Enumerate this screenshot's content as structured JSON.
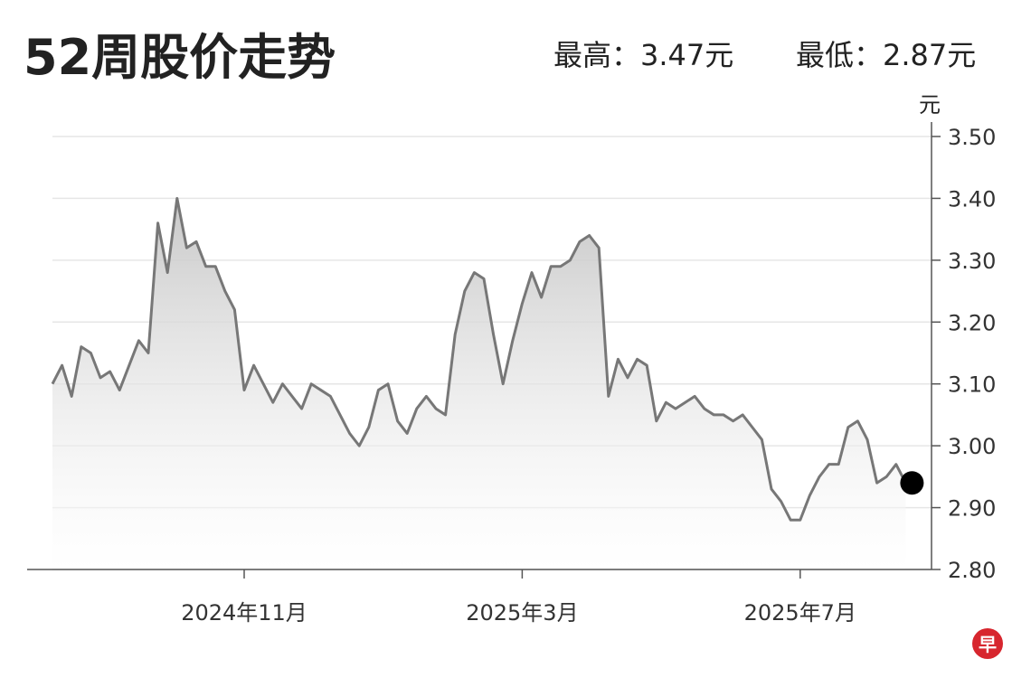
{
  "chart_data": {
    "type": "line",
    "title": "52周股价走势",
    "high_label": "最高：3.47元",
    "low_label": "最低：2.87元",
    "y_unit": "元",
    "logo": "早",
    "categories": [
      null,
      null,
      null,
      null,
      null,
      null,
      null,
      null,
      null,
      null,
      null,
      null,
      null,
      null,
      null,
      null,
      null,
      null,
      null,
      null,
      "2024年11月",
      null,
      null,
      null,
      null,
      null,
      null,
      null,
      null,
      null,
      null,
      null,
      null,
      null,
      null,
      null,
      null,
      null,
      null,
      null,
      null,
      null,
      null,
      null,
      null,
      null,
      null,
      null,
      null,
      "2025年3月",
      null,
      null,
      null,
      null,
      null,
      null,
      null,
      null,
      null,
      null,
      null,
      null,
      null,
      null,
      null,
      null,
      null,
      null,
      null,
      null,
      null,
      null,
      null,
      null,
      null,
      null,
      null,
      null,
      "2025年7月",
      null,
      null,
      null,
      null,
      null,
      null,
      null,
      null,
      null,
      null,
      null
    ],
    "series": [
      {
        "name": null,
        "color": "#777777",
        "values": [
          3.1,
          3.13,
          3.08,
          3.16,
          3.15,
          3.11,
          3.12,
          3.09,
          3.13,
          3.17,
          3.15,
          3.36,
          3.28,
          3.4,
          3.32,
          3.33,
          3.29,
          3.29,
          3.25,
          3.22,
          3.09,
          3.13,
          3.1,
          3.07,
          3.1,
          3.08,
          3.06,
          3.1,
          3.09,
          3.08,
          3.05,
          3.02,
          3.0,
          3.03,
          3.09,
          3.1,
          3.04,
          3.02,
          3.06,
          3.08,
          3.06,
          3.05,
          3.18,
          3.25,
          3.28,
          3.27,
          3.18,
          3.1,
          3.17,
          3.23,
          3.28,
          3.24,
          3.29,
          3.29,
          3.3,
          3.33,
          3.34,
          3.32,
          3.08,
          3.14,
          3.11,
          3.14,
          3.13,
          3.04,
          3.07,
          3.06,
          3.07,
          3.08,
          3.06,
          3.05,
          3.05,
          3.04,
          3.05,
          3.03,
          3.01,
          2.93,
          2.91,
          2.88,
          2.88,
          2.92,
          2.95,
          2.97,
          2.97,
          3.03,
          3.04,
          3.01,
          2.94,
          2.95,
          2.97,
          2.94
        ]
      }
    ],
    "ylim": [
      2.8,
      3.5
    ],
    "yticks": [
      {
        "value": 2.8,
        "label": "2.80"
      },
      {
        "value": 2.9,
        "label": "2.90"
      },
      {
        "value": 3.0,
        "label": "3.00"
      },
      {
        "value": 3.1,
        "label": "3.10"
      },
      {
        "value": 3.2,
        "label": "3.20"
      },
      {
        "value": 3.3,
        "label": "3.30"
      },
      {
        "value": 3.4,
        "label": "3.40"
      },
      {
        "value": 3.5,
        "label": "3.50"
      }
    ],
    "grid": true
  }
}
